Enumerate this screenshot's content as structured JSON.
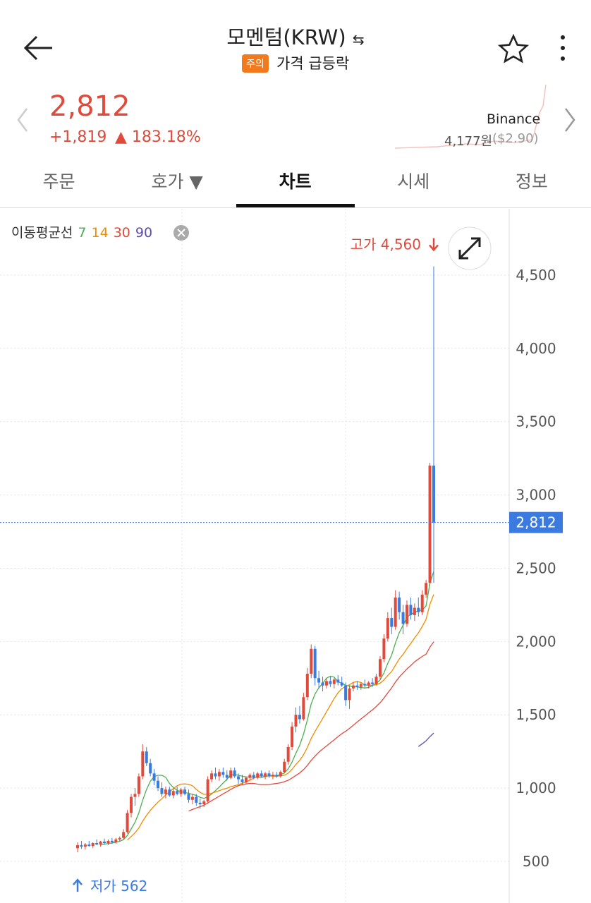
{
  "header": {
    "title": "모멘텀(KRW)",
    "badge": "주의",
    "badge_text": "가격 급등락"
  },
  "price": {
    "value": "2,812",
    "change": "+1,819",
    "change_rate": "▲ 183.18%",
    "exchange": "Binance",
    "exchange_price": "4,177원",
    "exchange_usd": "($2.90)"
  },
  "tabs": [
    "주문",
    "호가 ▼",
    "차트",
    "시세",
    "정보"
  ],
  "chart_data": {
    "type": "candlestick",
    "legend_title": "이동평균선",
    "moving_averages": [
      {
        "period": 7,
        "color": "#4caf50"
      },
      {
        "period": 14,
        "color": "#f08c00"
      },
      {
        "period": 30,
        "color": "#e14a3b"
      },
      {
        "period": 90,
        "color": "#5a4fb0"
      }
    ],
    "up_color": "#e14a3b",
    "down_color": "#3b7be0",
    "ylim": [
      216,
      4952
    ],
    "yticks": [
      {
        "value": 500,
        "label": "500"
      },
      {
        "value": 1000,
        "label": "1,000"
      },
      {
        "value": 1500,
        "label": "1,500"
      },
      {
        "value": 2000,
        "label": "2,000"
      },
      {
        "value": 2500,
        "label": "2,500"
      },
      {
        "value": 3000,
        "label": "3,000"
      },
      {
        "value": 3500,
        "label": "3,500"
      },
      {
        "value": 4000,
        "label": "4,000"
      },
      {
        "value": 4500,
        "label": "4,500"
      }
    ],
    "grid": true,
    "current_price": 2812,
    "current_price_label": "2,812",
    "high_label": "고가 4,560",
    "low_label": "저가 562",
    "candles": [
      [
        590,
        630,
        562,
        610
      ],
      [
        610,
        640,
        585,
        600
      ],
      [
        600,
        625,
        580,
        615
      ],
      [
        615,
        640,
        600,
        605
      ],
      [
        605,
        630,
        590,
        625
      ],
      [
        625,
        650,
        610,
        615
      ],
      [
        615,
        640,
        600,
        635
      ],
      [
        635,
        655,
        615,
        625
      ],
      [
        625,
        650,
        610,
        640
      ],
      [
        640,
        660,
        620,
        630
      ],
      [
        630,
        660,
        620,
        650
      ],
      [
        650,
        670,
        635,
        660
      ],
      [
        660,
        720,
        650,
        700
      ],
      [
        700,
        850,
        690,
        830
      ],
      [
        830,
        960,
        800,
        940
      ],
      [
        940,
        1000,
        880,
        960
      ],
      [
        960,
        1100,
        940,
        1080
      ],
      [
        1080,
        1300,
        1060,
        1250
      ],
      [
        1250,
        1280,
        1150,
        1170
      ],
      [
        1170,
        1200,
        1080,
        1100
      ],
      [
        1100,
        1130,
        1020,
        1050
      ],
      [
        1050,
        1080,
        980,
        1000
      ],
      [
        1000,
        1040,
        940,
        960
      ],
      [
        960,
        1010,
        930,
        990
      ],
      [
        990,
        1010,
        940,
        950
      ],
      [
        950,
        1000,
        930,
        980
      ],
      [
        980,
        1010,
        950,
        960
      ],
      [
        960,
        1000,
        940,
        990
      ],
      [
        990,
        1010,
        950,
        960
      ],
      [
        960,
        990,
        900,
        920
      ],
      [
        920,
        960,
        890,
        940
      ],
      [
        940,
        960,
        880,
        900
      ],
      [
        900,
        930,
        860,
        890
      ],
      [
        890,
        920,
        870,
        910
      ],
      [
        910,
        1080,
        900,
        1060
      ],
      [
        1060,
        1120,
        1040,
        1100
      ],
      [
        1100,
        1140,
        1060,
        1080
      ],
      [
        1080,
        1130,
        1050,
        1110
      ],
      [
        1110,
        1140,
        1070,
        1090
      ],
      [
        1090,
        1120,
        1050,
        1070
      ],
      [
        1070,
        1140,
        1060,
        1120
      ],
      [
        1120,
        1140,
        1070,
        1080
      ],
      [
        1080,
        1100,
        1030,
        1060
      ],
      [
        1060,
        1090,
        1020,
        1040
      ],
      [
        1040,
        1080,
        1030,
        1070
      ],
      [
        1070,
        1100,
        1050,
        1090
      ],
      [
        1090,
        1110,
        1060,
        1070
      ],
      [
        1070,
        1110,
        1060,
        1100
      ],
      [
        1100,
        1120,
        1070,
        1080
      ],
      [
        1080,
        1110,
        1060,
        1100
      ],
      [
        1100,
        1120,
        1070,
        1080
      ],
      [
        1080,
        1110,
        1060,
        1090
      ],
      [
        1090,
        1110,
        1070,
        1080
      ],
      [
        1080,
        1120,
        1070,
        1110
      ],
      [
        1110,
        1200,
        1100,
        1180
      ],
      [
        1180,
        1300,
        1160,
        1280
      ],
      [
        1280,
        1450,
        1260,
        1420
      ],
      [
        1420,
        1550,
        1380,
        1500
      ],
      [
        1500,
        1560,
        1440,
        1470
      ],
      [
        1470,
        1650,
        1460,
        1620
      ],
      [
        1620,
        1820,
        1600,
        1780
      ],
      [
        1780,
        1980,
        1750,
        1950
      ],
      [
        1950,
        1970,
        1700,
        1750
      ],
      [
        1750,
        1800,
        1680,
        1720
      ],
      [
        1720,
        1760,
        1660,
        1700
      ],
      [
        1700,
        1750,
        1680,
        1730
      ],
      [
        1730,
        1760,
        1690,
        1710
      ],
      [
        1710,
        1750,
        1680,
        1740
      ],
      [
        1740,
        1770,
        1700,
        1720
      ],
      [
        1720,
        1760,
        1690,
        1700
      ],
      [
        1700,
        1720,
        1560,
        1600
      ],
      [
        1600,
        1700,
        1540,
        1680
      ],
      [
        1680,
        1720,
        1660,
        1700
      ],
      [
        1700,
        1730,
        1670,
        1690
      ],
      [
        1690,
        1720,
        1670,
        1710
      ],
      [
        1710,
        1740,
        1680,
        1700
      ],
      [
        1700,
        1730,
        1680,
        1720
      ],
      [
        1720,
        1750,
        1690,
        1710
      ],
      [
        1710,
        1780,
        1700,
        1760
      ],
      [
        1760,
        1900,
        1740,
        1880
      ],
      [
        1880,
        2050,
        1860,
        2020
      ],
      [
        2020,
        2200,
        2000,
        2160
      ],
      [
        2160,
        2230,
        2050,
        2100
      ],
      [
        2100,
        2350,
        2080,
        2300
      ],
      [
        2300,
        2340,
        2150,
        2200
      ],
      [
        2200,
        2250,
        2050,
        2120
      ],
      [
        2120,
        2280,
        2100,
        2250
      ],
      [
        2250,
        2300,
        2150,
        2180
      ],
      [
        2180,
        2260,
        2140,
        2230
      ],
      [
        2230,
        2300,
        2170,
        2200
      ],
      [
        2200,
        2350,
        2180,
        2320
      ],
      [
        2320,
        2420,
        2300,
        2400
      ],
      [
        2400,
        3220,
        2380,
        3200
      ],
      [
        3200,
        4560,
        2400,
        2812
      ]
    ]
  }
}
